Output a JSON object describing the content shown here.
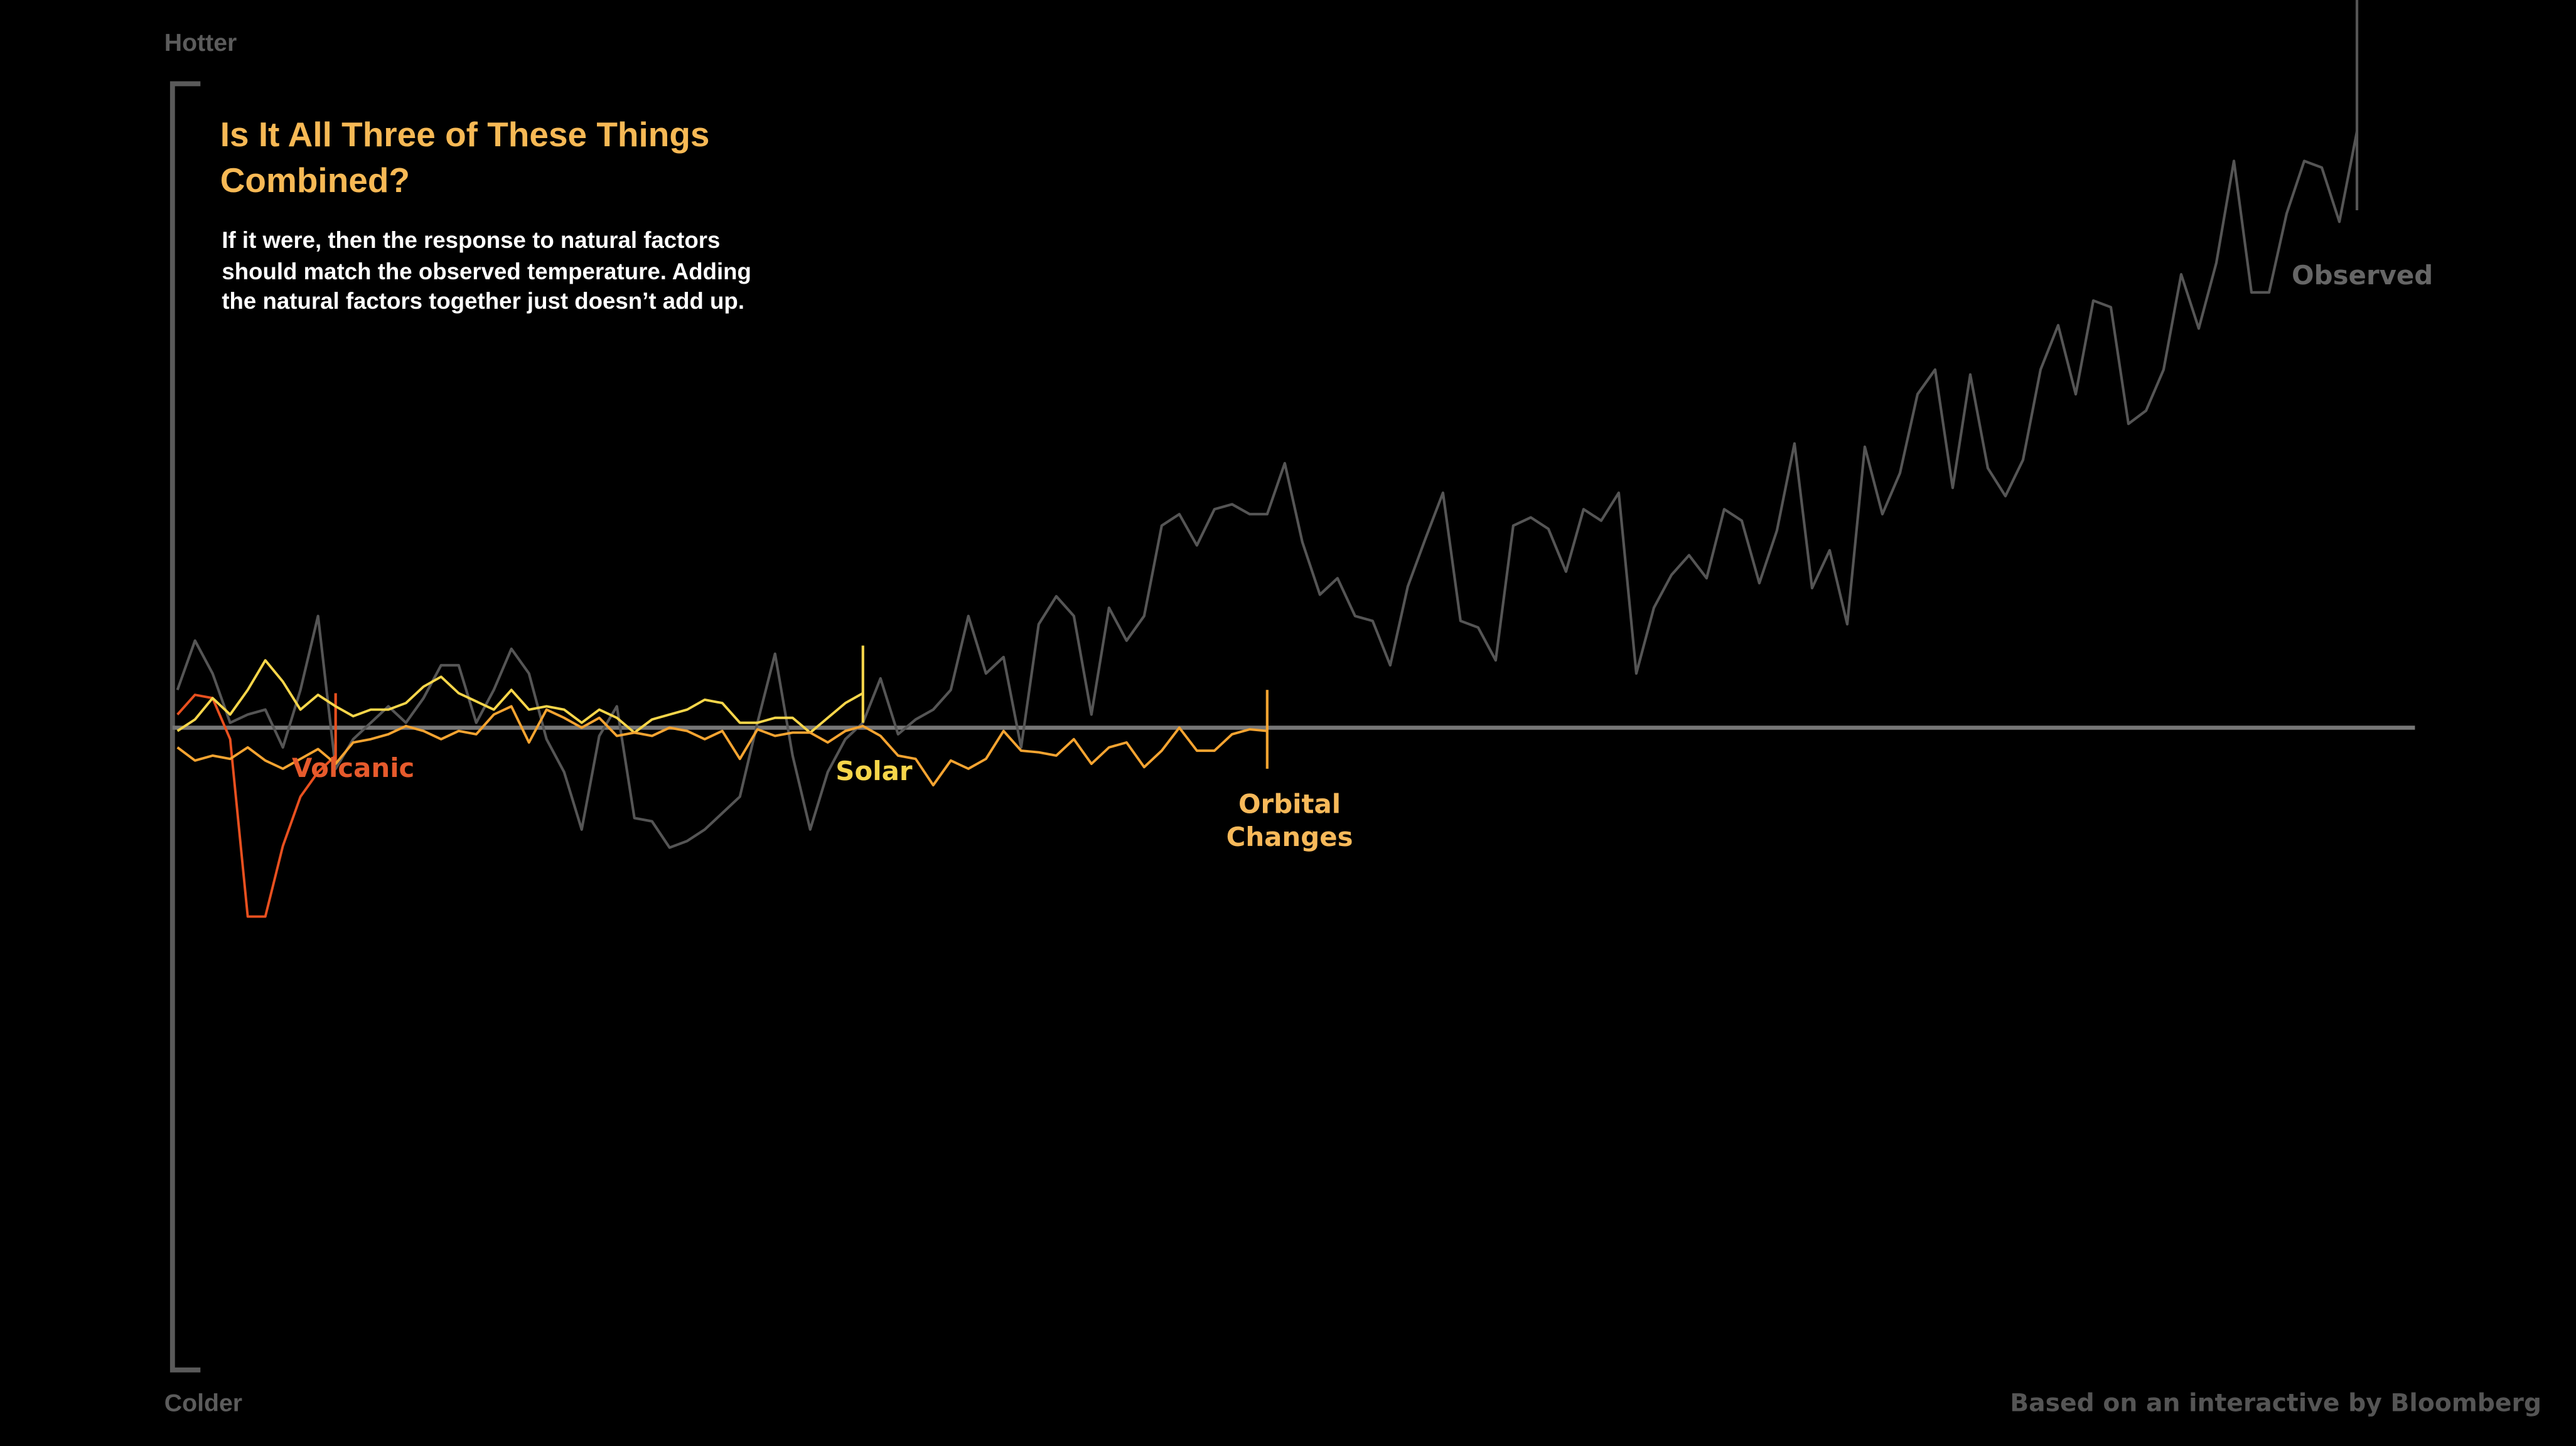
{
  "chart_data": {
    "type": "line",
    "title": "Is It All Three of These Things Combined?",
    "subtitle": "If it were, then the response to natural factors should match the observed temperature. Adding the natural factors together just doesn’t add up.",
    "y_top_label": "Hotter",
    "y_bottom_label": "Colder",
    "source": "Based on an interactive by Bloomberg",
    "xlim": [
      0,
      127.3
    ],
    "ylim": [
      -4,
      4.4
    ],
    "x": [
      0,
      1,
      2,
      3,
      4,
      5,
      6,
      7,
      8,
      9,
      10,
      11,
      12,
      13,
      14,
      15,
      16,
      17,
      18,
      19,
      20,
      21,
      22,
      23,
      24,
      25,
      26,
      27,
      28,
      29,
      30,
      31,
      32,
      33,
      34,
      35,
      36,
      37,
      38,
      39,
      40,
      41,
      42,
      43,
      44,
      45,
      46,
      47,
      48,
      49,
      50,
      51,
      52,
      53,
      54,
      55,
      56,
      57,
      58,
      59,
      60,
      61,
      62,
      63,
      64,
      65,
      66,
      67,
      68,
      69,
      70,
      71,
      72,
      73,
      74,
      75,
      76,
      77,
      78,
      79,
      80,
      81,
      82,
      83,
      84,
      85,
      86,
      87,
      88,
      89,
      90,
      91,
      92,
      93,
      94,
      95,
      96,
      97,
      98,
      99,
      100,
      101,
      102,
      103,
      104,
      105,
      106,
      107,
      108,
      109,
      110,
      111,
      112,
      113,
      114,
      115,
      116,
      117,
      118,
      119,
      120,
      121,
      122,
      123,
      124
    ],
    "series": [
      {
        "name": "Observed",
        "color": "#555555",
        "values": [
          0.23,
          0.53,
          0.33,
          0.03,
          0.08,
          0.11,
          -0.12,
          0.23,
          0.68,
          -0.25,
          -0.07,
          0.03,
          0.13,
          0.03,
          0.18,
          0.38,
          0.38,
          0.03,
          0.23,
          0.48,
          0.33,
          -0.07,
          -0.27,
          -0.62,
          -0.05,
          0.13,
          -0.55,
          -0.57,
          -0.73,
          -0.69,
          -0.62,
          -0.52,
          -0.42,
          0.03,
          0.45,
          -0.17,
          -0.62,
          -0.27,
          -0.07,
          0.03,
          0.3,
          -0.04,
          0.05,
          0.11,
          0.23,
          0.68,
          0.33,
          0.43,
          -0.12,
          0.63,
          0.8,
          0.68,
          0.08,
          0.73,
          0.53,
          0.68,
          1.23,
          1.3,
          1.11,
          1.33,
          1.36,
          1.3,
          1.3,
          1.61,
          1.13,
          0.81,
          0.91,
          0.68,
          0.65,
          0.38,
          0.86,
          1.15,
          1.43,
          0.65,
          0.61,
          0.41,
          1.23,
          1.28,
          1.21,
          0.95,
          1.33,
          1.26,
          1.43,
          0.33,
          0.73,
          0.93,
          1.05,
          0.91,
          1.33,
          1.26,
          0.88,
          1.2,
          1.73,
          0.85,
          1.08,
          0.63,
          1.71,
          1.3,
          1.55,
          2.03,
          2.18,
          1.46,
          2.15,
          1.58,
          1.41,
          1.63,
          2.18,
          2.45,
          2.03,
          2.6,
          2.56,
          1.85,
          1.93,
          2.18,
          2.76,
          2.43,
          2.83,
          3.45,
          2.65,
          2.65,
          3.13,
          3.45,
          3.41,
          3.08,
          3.63
        ]
      },
      {
        "name": "Volcanic",
        "color": "#e8501f",
        "values": [
          0.08,
          0.2,
          0.18,
          -0.07,
          -1.15,
          -1.15,
          -0.72,
          -0.42,
          -0.27,
          -0.17,
          null,
          null,
          null,
          null,
          null,
          null,
          null,
          null,
          null,
          null,
          null,
          null,
          null,
          null,
          null,
          null,
          null,
          null,
          null,
          null,
          null,
          null,
          null,
          null,
          null,
          null,
          null,
          null,
          null,
          null,
          null,
          null,
          null,
          null,
          null,
          null,
          null,
          null,
          null,
          null,
          null,
          null,
          null,
          null,
          null,
          null,
          null,
          null,
          null,
          null,
          null,
          null,
          null,
          null,
          null,
          null,
          null,
          null,
          null,
          null,
          null,
          null,
          null,
          null,
          null,
          null,
          null,
          null,
          null,
          null,
          null,
          null,
          null,
          null,
          null,
          null,
          null,
          null,
          null,
          null,
          null,
          null,
          null,
          null,
          null,
          null,
          null,
          null,
          null,
          null,
          null,
          null,
          null,
          null,
          null,
          null,
          null,
          null,
          null,
          null,
          null,
          null,
          null,
          null,
          null,
          null,
          null,
          null,
          null,
          null,
          null,
          null,
          null,
          null,
          null
        ]
      },
      {
        "name": "Solar",
        "color": "#f7d64a",
        "values": [
          -0.02,
          0.05,
          0.18,
          0.08,
          0.23,
          0.41,
          0.28,
          0.11,
          0.2,
          0.13,
          0.07,
          0.11,
          0.11,
          0.15,
          0.25,
          0.31,
          0.21,
          0.16,
          0.11,
          0.23,
          0.11,
          0.13,
          0.11,
          0.03,
          0.11,
          0.06,
          -0.03,
          0.05,
          0.08,
          0.11,
          0.17,
          0.15,
          0.03,
          0.03,
          0.06,
          0.06,
          -0.03,
          0.06,
          0.15,
          0.21,
          null,
          null,
          null,
          null,
          null,
          null,
          null,
          null,
          null,
          null,
          null,
          null,
          null,
          null,
          null,
          null,
          null,
          null,
          null,
          null,
          null,
          null,
          null,
          null,
          null,
          null,
          null,
          null,
          null,
          null,
          null,
          null,
          null,
          null,
          null,
          null,
          null,
          null,
          null,
          null,
          null,
          null,
          null,
          null,
          null,
          null,
          null,
          null,
          null,
          null,
          null,
          null,
          null,
          null,
          null,
          null,
          null,
          null,
          null,
          null,
          null,
          null,
          null,
          null,
          null,
          null,
          null,
          null,
          null,
          null,
          null,
          null,
          null,
          null,
          null,
          null,
          null,
          null,
          null,
          null,
          null,
          null,
          null,
          null,
          null
        ]
      },
      {
        "name": "Orbital Changes",
        "color": "#f5a431",
        "values": [
          -0.12,
          -0.2,
          -0.17,
          -0.19,
          -0.12,
          -0.2,
          -0.25,
          -0.19,
          -0.13,
          -0.22,
          -0.09,
          -0.07,
          -0.04,
          0.01,
          -0.02,
          -0.07,
          -0.02,
          -0.04,
          0.08,
          0.13,
          -0.09,
          0.11,
          0.06,
          0,
          0.06,
          -0.05,
          -0.03,
          -0.05,
          0,
          -0.02,
          -0.07,
          -0.02,
          -0.19,
          -0.01,
          -0.05,
          -0.03,
          -0.03,
          -0.09,
          -0.02,
          0.01,
          -0.05,
          -0.17,
          -0.19,
          -0.35,
          -0.2,
          -0.25,
          -0.19,
          -0.02,
          -0.14,
          -0.15,
          -0.17,
          -0.07,
          -0.22,
          -0.12,
          -0.09,
          -0.24,
          -0.14,
          0,
          -0.14,
          -0.14,
          -0.04,
          -0.01,
          -0.02,
          null,
          null,
          null,
          null,
          null,
          null,
          null,
          null,
          null,
          null,
          null,
          null,
          null,
          null,
          null,
          null,
          null,
          null,
          null,
          null,
          null,
          null,
          null,
          null,
          null,
          null,
          null,
          null,
          null,
          null,
          null,
          null,
          null,
          null,
          null,
          null,
          null,
          null,
          null,
          null,
          null,
          null,
          null,
          null,
          null,
          null,
          null,
          null,
          null,
          null,
          null,
          null,
          null,
          null,
          null,
          null,
          null,
          null,
          null,
          null,
          null,
          null
        ]
      }
    ]
  }
}
